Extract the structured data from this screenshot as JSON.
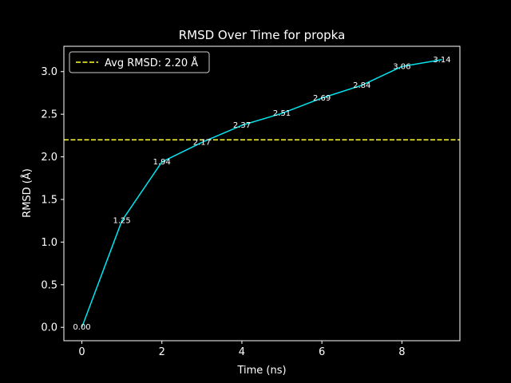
{
  "chart_data": {
    "type": "line",
    "title": "RMSD Over Time for propka",
    "xlabel": "Time (ns)",
    "ylabel": "RMSD (Å)",
    "xlim": [
      -0.45,
      9.45
    ],
    "ylim": [
      -0.157,
      3.297
    ],
    "xticks": [
      0,
      2,
      4,
      6,
      8
    ],
    "yticks": [
      0.0,
      0.5,
      1.0,
      1.5,
      2.0,
      2.5,
      3.0
    ],
    "xtick_labels": [
      "0",
      "2",
      "4",
      "6",
      "8"
    ],
    "ytick_labels": [
      "0.0",
      "0.5",
      "1.0",
      "1.5",
      "2.0",
      "2.5",
      "3.0"
    ],
    "series": [
      {
        "x": [
          0,
          1,
          2,
          3,
          4,
          5,
          6,
          7,
          8,
          9
        ],
        "values": [
          0.0,
          1.25,
          1.94,
          2.17,
          2.37,
          2.51,
          2.69,
          2.84,
          3.06,
          3.14
        ],
        "data_labels": [
          "0.00",
          "1.25",
          "1.94",
          "2.17",
          "2.37",
          "2.51",
          "2.69",
          "2.84",
          "3.06",
          "3.14"
        ],
        "color": "#00e5ee"
      }
    ],
    "reference_line": {
      "y": 2.2,
      "label": "Avg RMSD: 2.20 Å",
      "color": "#ffff33",
      "style": "dashed"
    },
    "legend_position": "top-left",
    "grid": false,
    "background": "#000000",
    "foreground": "#ffffff"
  }
}
